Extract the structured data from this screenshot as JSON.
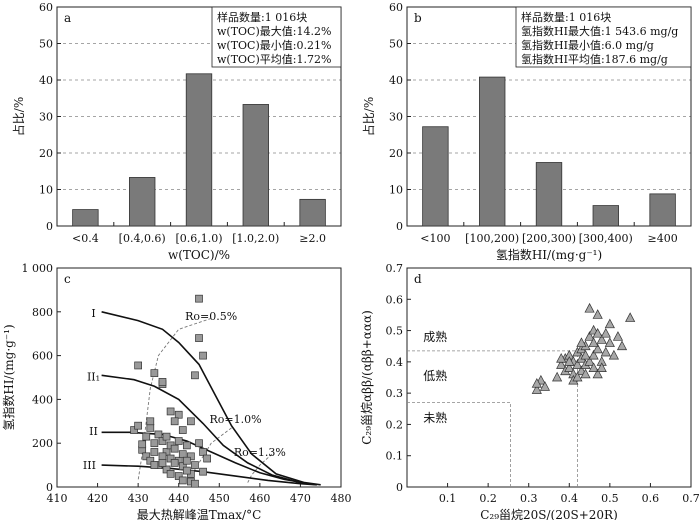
{
  "chart_data": [
    {
      "id": "a",
      "type": "bar",
      "panel_label": "a",
      "categories": [
        "<0.4",
        "[0.4,0.6)",
        "[0.6,1.0)",
        "[1.0,2.0)",
        "≥2.0"
      ],
      "values": [
        4.5,
        13.3,
        41.7,
        33.3,
        7.3
      ],
      "xlabel": "w(TOC)/%",
      "ylabel": "占比/%",
      "ylim": [
        0,
        60
      ],
      "yticks": [
        0,
        10,
        20,
        30,
        40,
        50,
        60
      ],
      "grid": "horizontal-dashed",
      "bar_color": "#7a7a7a",
      "stats": [
        "样品数量:1 016块",
        "w(TOC)最大值:14.2%",
        "w(TOC)最小值:0.21%",
        "w(TOC)平均值:1.72%"
      ]
    },
    {
      "id": "b",
      "type": "bar",
      "panel_label": "b",
      "categories": [
        "<100",
        "[100,200)",
        "[200,300)",
        "[300,400)",
        "≥400"
      ],
      "values": [
        27.2,
        40.8,
        17.4,
        5.6,
        8.8
      ],
      "xlabel": "氢指数HI/(mg·g⁻¹)",
      "ylabel": "占比/%",
      "ylim": [
        0,
        60
      ],
      "yticks": [
        0,
        10,
        20,
        30,
        40,
        50,
        60
      ],
      "grid": "horizontal-dashed",
      "bar_color": "#7a7a7a",
      "stats": [
        "样品数量:1 016块",
        "氢指数HI最大值:1 543.6 mg/g",
        "氢指数HI最小值:6.0 mg/g",
        "氢指数HI平均值:187.6 mg/g"
      ]
    },
    {
      "id": "c",
      "type": "scatter",
      "panel_label": "c",
      "xlabel": "最大热解峰温Tmax/°C",
      "ylabel": "氢指数HI/(mg·g⁻¹)",
      "xlim": [
        410,
        480
      ],
      "ylim": [
        0,
        1000
      ],
      "xticks": [
        410,
        420,
        430,
        440,
        450,
        460,
        470,
        480
      ],
      "yticks": [
        0,
        200,
        400,
        600,
        800,
        1000
      ],
      "ytick_labels": [
        "0",
        "200",
        "400",
        "600",
        "800",
        "1 000"
      ],
      "marker": "square",
      "marker_color": "#999999",
      "points": [
        [
          430,
          555
        ],
        [
          434,
          520
        ],
        [
          436,
          470
        ],
        [
          436,
          480
        ],
        [
          445,
          860
        ],
        [
          445,
          680
        ],
        [
          444,
          510
        ],
        [
          446,
          600
        ],
        [
          438,
          345
        ],
        [
          440,
          330
        ],
        [
          441,
          260
        ],
        [
          443,
          300
        ],
        [
          429,
          260
        ],
        [
          430,
          280
        ],
        [
          432,
          230
        ],
        [
          433,
          270
        ],
        [
          434,
          200
        ],
        [
          435,
          240
        ],
        [
          436,
          210
        ],
        [
          437,
          160
        ],
        [
          438,
          190
        ],
        [
          438,
          130
        ],
        [
          439,
          175
        ],
        [
          440,
          210
        ],
        [
          440,
          120
        ],
        [
          441,
          150
        ],
        [
          441,
          95
        ],
        [
          442,
          190
        ],
        [
          443,
          140
        ],
        [
          443,
          60
        ],
        [
          444,
          100
        ],
        [
          445,
          200
        ],
        [
          446,
          160
        ],
        [
          447,
          130
        ],
        [
          431,
          170
        ],
        [
          432,
          140
        ],
        [
          433,
          120
        ],
        [
          434,
          160
        ],
        [
          435,
          100
        ],
        [
          436,
          140
        ],
        [
          437,
          80
        ],
        [
          438,
          60
        ],
        [
          439,
          110
        ],
        [
          440,
          50
        ],
        [
          441,
          30
        ],
        [
          442,
          75
        ],
        [
          443,
          25
        ],
        [
          444,
          15
        ],
        [
          446,
          70
        ],
        [
          433,
          300
        ],
        [
          437,
          230
        ],
        [
          439,
          300
        ],
        [
          431,
          195
        ],
        [
          436,
          110
        ],
        [
          434,
          100
        ],
        [
          442,
          120
        ]
      ],
      "curves": [
        {
          "label": "I",
          "points": [
            [
              421,
              800
            ],
            [
              430,
              760
            ],
            [
              436,
              720
            ],
            [
              440,
              660
            ],
            [
              445,
              560
            ],
            [
              449,
              420
            ],
            [
              453,
              280
            ],
            [
              458,
              150
            ],
            [
              464,
              60
            ],
            [
              471,
              20
            ],
            [
              475,
              10
            ]
          ]
        },
        {
          "label": "II₁",
          "points": [
            [
              421,
              510
            ],
            [
              429,
              490
            ],
            [
              434,
              460
            ],
            [
              440,
              400
            ],
            [
              446,
              290
            ],
            [
              451,
              190
            ],
            [
              457,
              110
            ],
            [
              463,
              55
            ],
            [
              470,
              20
            ],
            [
              474,
              10
            ]
          ]
        },
        {
          "label": "II",
          "points": [
            [
              421,
              250
            ],
            [
              428,
              250
            ],
            [
              436,
              240
            ],
            [
              442,
              210
            ],
            [
              448,
              160
            ],
            [
              454,
              110
            ],
            [
              460,
              65
            ],
            [
              466,
              35
            ],
            [
              472,
              15
            ]
          ]
        },
        {
          "label": "III",
          "points": [
            [
              421,
              100
            ],
            [
              430,
              95
            ],
            [
              438,
              85
            ],
            [
              446,
              70
            ],
            [
              454,
              50
            ],
            [
              462,
              30
            ],
            [
              470,
              15
            ],
            [
              474,
              10
            ]
          ]
        }
      ],
      "iso_lines": [
        {
          "label": "Ro=0.5%",
          "points": [
            [
              448,
              770
            ],
            [
              440,
              720
            ],
            [
              435,
              600
            ],
            [
              433,
              450
            ],
            [
              432,
              300
            ],
            [
              431,
              150
            ],
            [
              430,
              30
            ]
          ]
        },
        {
          "label": "Ro=1.0%",
          "points": [
            [
              453,
              270
            ],
            [
              448,
              200
            ],
            [
              446,
              140
            ],
            [
              444,
              80
            ],
            [
              443,
              25
            ]
          ]
        },
        {
          "label": "Ro=1.3%",
          "points": [
            [
              463,
              150
            ],
            [
              460,
              100
            ],
            [
              458,
              55
            ],
            [
              457,
              20
            ]
          ]
        }
      ],
      "curve_labels": [
        {
          "text": "I",
          "x": 419,
          "y": 795
        },
        {
          "text": "II₁",
          "x": 419,
          "y": 505
        },
        {
          "text": "II",
          "x": 419,
          "y": 255
        },
        {
          "text": "III",
          "x": 418,
          "y": 100
        },
        {
          "text": "Ro=0.5%",
          "x": 448,
          "y": 780
        },
        {
          "text": "Ro=1.0%",
          "x": 454,
          "y": 310
        },
        {
          "text": "Ro=1.3%",
          "x": 460,
          "y": 160
        }
      ]
    },
    {
      "id": "d",
      "type": "scatter",
      "panel_label": "d",
      "xlabel": "C₂₉甾烷20S/(20S+20R)",
      "ylabel": "C₂₉甾烷αββ/(αββ+ααα)",
      "xlim": [
        0,
        0.7
      ],
      "ylim": [
        0,
        0.7
      ],
      "xticks": [
        0.1,
        0.2,
        0.3,
        0.4,
        0.5,
        0.6,
        0.7
      ],
      "yticks": [
        0,
        0.1,
        0.2,
        0.3,
        0.4,
        0.5,
        0.6,
        0.7
      ],
      "marker": "triangle",
      "marker_color": "#a8a8a8",
      "points": [
        [
          0.32,
          0.31
        ],
        [
          0.33,
          0.34
        ],
        [
          0.32,
          0.33
        ],
        [
          0.34,
          0.32
        ],
        [
          0.37,
          0.35
        ],
        [
          0.38,
          0.39
        ],
        [
          0.39,
          0.41
        ],
        [
          0.39,
          0.37
        ],
        [
          0.4,
          0.42
        ],
        [
          0.4,
          0.38
        ],
        [
          0.41,
          0.4
        ],
        [
          0.41,
          0.36
        ],
        [
          0.42,
          0.43
        ],
        [
          0.42,
          0.39
        ],
        [
          0.43,
          0.41
        ],
        [
          0.43,
          0.44
        ],
        [
          0.43,
          0.37
        ],
        [
          0.44,
          0.39
        ],
        [
          0.44,
          0.45
        ],
        [
          0.44,
          0.36
        ],
        [
          0.45,
          0.4
        ],
        [
          0.45,
          0.48
        ],
        [
          0.46,
          0.42
        ],
        [
          0.46,
          0.5
        ],
        [
          0.46,
          0.38
        ],
        [
          0.47,
          0.44
        ],
        [
          0.47,
          0.55
        ],
        [
          0.47,
          0.36
        ],
        [
          0.48,
          0.47
        ],
        [
          0.48,
          0.4
        ],
        [
          0.49,
          0.49
        ],
        [
          0.49,
          0.43
        ],
        [
          0.5,
          0.46
        ],
        [
          0.5,
          0.52
        ],
        [
          0.51,
          0.42
        ],
        [
          0.52,
          0.48
        ],
        [
          0.53,
          0.45
        ],
        [
          0.55,
          0.54
        ],
        [
          0.45,
          0.57
        ],
        [
          0.41,
          0.34
        ],
        [
          0.42,
          0.35
        ],
        [
          0.48,
          0.38
        ],
        [
          0.46,
          0.46
        ],
        [
          0.44,
          0.42
        ],
        [
          0.4,
          0.4
        ],
        [
          0.43,
          0.46
        ],
        [
          0.47,
          0.49
        ],
        [
          0.38,
          0.41
        ]
      ],
      "zone_labels": [
        {
          "text": "成熟",
          "x": 0.04,
          "y": 0.48
        },
        {
          "text": "低熟",
          "x": 0.04,
          "y": 0.355
        },
        {
          "text": "未熟",
          "x": 0.04,
          "y": 0.22
        }
      ],
      "boundary_lines": [
        [
          [
            0,
            0.435
          ],
          [
            0.42,
            0.435
          ]
        ],
        [
          [
            0.42,
            0
          ],
          [
            0.42,
            0.435
          ]
        ],
        [
          [
            0,
            0.27
          ],
          [
            0.255,
            0.27
          ]
        ],
        [
          [
            0.255,
            0
          ],
          [
            0.255,
            0.27
          ]
        ]
      ]
    }
  ]
}
